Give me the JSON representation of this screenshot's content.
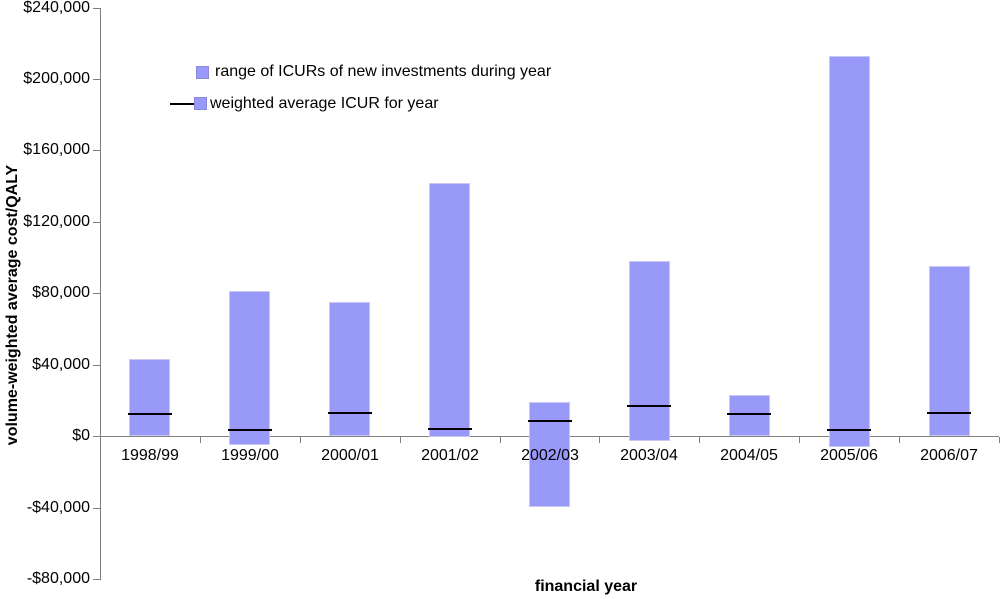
{
  "chart_data": {
    "type": "bar",
    "subtype": "floating-range-bars-with-weighted-average-markers",
    "title": "",
    "xlabel": "financial year",
    "ylabel": "volume-weighted average cost/QALY",
    "categories": [
      "1998/99",
      "1999/00",
      "2000/01",
      "2001/02",
      "2002/03",
      "2003/04",
      "2004/05",
      "2005/06",
      "2006/07"
    ],
    "series": [
      {
        "name": "range of ICURs of new investments during year",
        "type": "range-bar",
        "low": [
          0,
          -5000,
          0,
          0,
          -40000,
          -3000,
          0,
          -6000,
          0
        ],
        "high": [
          43000,
          81000,
          75000,
          142000,
          19000,
          98000,
          23000,
          213000,
          95000
        ]
      },
      {
        "name": "weighted average ICUR for year",
        "type": "average-marker",
        "values": [
          12500,
          3500,
          13000,
          4000,
          8500,
          17000,
          12500,
          3500,
          13000
        ]
      }
    ],
    "ylim": [
      -80000,
      240000
    ],
    "ytick_step": 40000,
    "yticks": [
      {
        "value": 240000,
        "label": "$240,000"
      },
      {
        "value": 200000,
        "label": "$200,000"
      },
      {
        "value": 160000,
        "label": "$160,000"
      },
      {
        "value": 120000,
        "label": "$120,000"
      },
      {
        "value": 80000,
        "label": "$80,000"
      },
      {
        "value": 40000,
        "label": "$40,000"
      },
      {
        "value": 0,
        "label": "$0"
      },
      {
        "value": -40000,
        "label": "-$40,000"
      },
      {
        "value": -80000,
        "label": "-$80,000"
      }
    ],
    "grid": false,
    "legend_position": "inside-top-left",
    "colors": {
      "bar_fill": "#9999FA",
      "bar_border": "#C9C8F2",
      "average_line": "#000000",
      "axis": "#808080",
      "text": "#000000",
      "background": "#FFFFFF"
    }
  }
}
